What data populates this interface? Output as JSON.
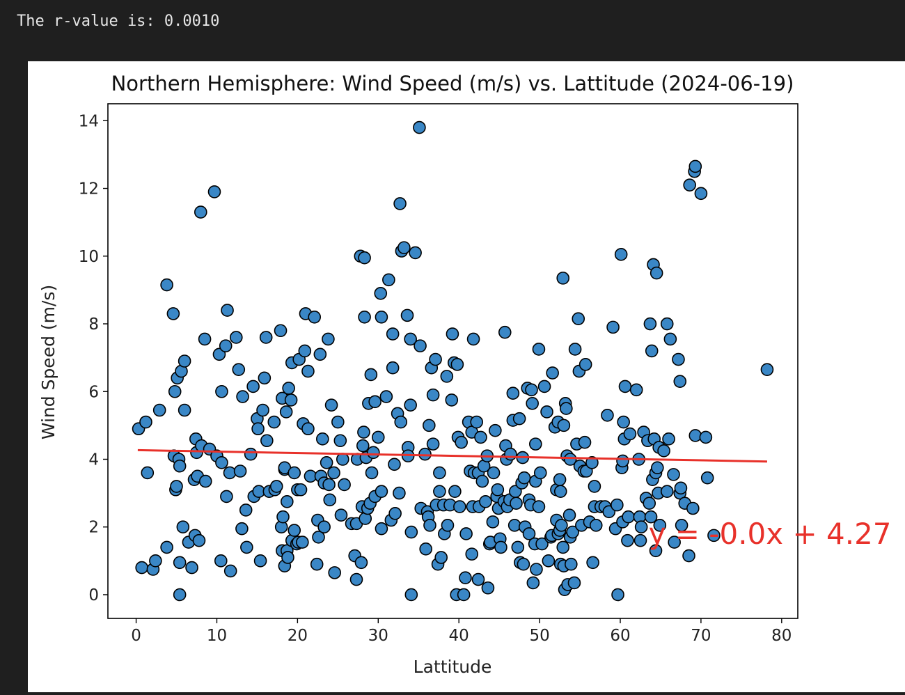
{
  "output": {
    "text": "The r-value is: 0.0010"
  },
  "chart_data": {
    "type": "scatter",
    "title": "Northern Hemisphere: Wind Speed (m/s) vs. Lattitude (2024-06-19)",
    "xlabel": "Lattitude",
    "ylabel": "Wind Speed (m/s)",
    "xlim": [
      -3.5,
      82
    ],
    "ylim": [
      -0.7,
      14.5
    ],
    "xticks": [
      0,
      10,
      20,
      30,
      40,
      50,
      60,
      70,
      80
    ],
    "yticks": [
      0,
      2,
      4,
      6,
      8,
      10,
      12,
      14
    ],
    "grid": false,
    "marker_color": "#3a87c6",
    "marker_edge": "#000000",
    "regression": {
      "equation": "y = -0.0x + 4.27",
      "slope": -0.0043,
      "intercept": 4.27,
      "x_range": [
        0.2,
        78.2
      ],
      "color": "#e8312a",
      "label_position": [
        63.5,
        1.5
      ]
    },
    "points": [
      [
        0.3,
        4.9
      ],
      [
        1.2,
        5.1
      ],
      [
        0.7,
        0.8
      ],
      [
        1.4,
        3.6
      ],
      [
        2.1,
        0.75
      ],
      [
        2.4,
        1.0
      ],
      [
        2.9,
        5.45
      ],
      [
        3.8,
        9.15
      ],
      [
        3.8,
        1.4
      ],
      [
        4.6,
        8.3
      ],
      [
        4.8,
        6.0
      ],
      [
        4.7,
        4.1
      ],
      [
        4.9,
        3.1
      ],
      [
        5.1,
        6.4
      ],
      [
        5.0,
        3.2
      ],
      [
        5.3,
        4.0
      ],
      [
        5.4,
        3.8
      ],
      [
        5.4,
        0.95
      ],
      [
        5.4,
        0.0
      ],
      [
        5.6,
        6.6
      ],
      [
        5.8,
        2.0
      ],
      [
        6.0,
        5.45
      ],
      [
        6.0,
        6.9
      ],
      [
        6.5,
        1.55
      ],
      [
        6.9,
        0.8
      ],
      [
        7.3,
        1.75
      ],
      [
        7.2,
        3.4
      ],
      [
        7.4,
        4.6
      ],
      [
        7.5,
        4.2
      ],
      [
        7.6,
        3.5
      ],
      [
        7.8,
        1.6
      ],
      [
        8.0,
        11.3
      ],
      [
        8.1,
        4.4
      ],
      [
        8.5,
        7.55
      ],
      [
        8.6,
        3.35
      ],
      [
        9.1,
        4.3
      ],
      [
        9.7,
        11.9
      ],
      [
        10.0,
        4.1
      ],
      [
        10.3,
        7.1
      ],
      [
        10.5,
        1.0
      ],
      [
        10.6,
        3.9
      ],
      [
        10.6,
        6.0
      ],
      [
        11.2,
        2.9
      ],
      [
        11.1,
        7.35
      ],
      [
        11.3,
        8.4
      ],
      [
        11.6,
        3.6
      ],
      [
        11.7,
        0.7
      ],
      [
        12.4,
        7.6
      ],
      [
        12.7,
        6.65
      ],
      [
        12.9,
        3.65
      ],
      [
        13.1,
        1.95
      ],
      [
        13.2,
        5.85
      ],
      [
        13.6,
        2.5
      ],
      [
        13.7,
        1.4
      ],
      [
        14.2,
        4.15
      ],
      [
        14.6,
        2.9
      ],
      [
        14.5,
        6.15
      ],
      [
        15.0,
        5.2
      ],
      [
        15.2,
        3.05
      ],
      [
        15.1,
        4.9
      ],
      [
        15.4,
        1.0
      ],
      [
        15.7,
        5.45
      ],
      [
        15.9,
        6.4
      ],
      [
        16.1,
        7.6
      ],
      [
        16.2,
        4.55
      ],
      [
        16.5,
        3.05
      ],
      [
        17.1,
        5.1
      ],
      [
        17.2,
        3.1
      ],
      [
        17.4,
        3.2
      ],
      [
        17.9,
        7.8
      ],
      [
        18.1,
        5.8
      ],
      [
        18.0,
        2.0
      ],
      [
        18.1,
        1.3
      ],
      [
        18.2,
        2.3
      ],
      [
        18.4,
        0.85
      ],
      [
        18.4,
        3.7
      ],
      [
        18.4,
        3.75
      ],
      [
        18.6,
        5.4
      ],
      [
        18.7,
        2.75
      ],
      [
        18.7,
        1.3
      ],
      [
        18.8,
        1.1
      ],
      [
        18.9,
        6.1
      ],
      [
        19.2,
        5.75
      ],
      [
        19.3,
        6.85
      ],
      [
        19.3,
        1.6
      ],
      [
        19.6,
        3.6
      ],
      [
        19.6,
        1.9
      ],
      [
        19.9,
        1.5
      ],
      [
        20.0,
        3.1
      ],
      [
        20.1,
        1.55
      ],
      [
        20.2,
        6.95
      ],
      [
        20.4,
        3.1
      ],
      [
        20.6,
        1.55
      ],
      [
        20.7,
        5.05
      ],
      [
        20.9,
        7.2
      ],
      [
        21.0,
        8.3
      ],
      [
        21.3,
        6.6
      ],
      [
        21.3,
        4.9
      ],
      [
        21.6,
        3.5
      ],
      [
        22.1,
        8.2
      ],
      [
        22.4,
        0.9
      ],
      [
        22.5,
        2.2
      ],
      [
        22.6,
        1.7
      ],
      [
        22.8,
        7.1
      ],
      [
        22.9,
        3.5
      ],
      [
        23.1,
        4.6
      ],
      [
        23.3,
        3.3
      ],
      [
        23.3,
        2.0
      ],
      [
        23.6,
        3.9
      ],
      [
        23.8,
        7.55
      ],
      [
        23.9,
        3.25
      ],
      [
        24.0,
        2.8
      ],
      [
        24.2,
        5.6
      ],
      [
        24.5,
        3.6
      ],
      [
        24.6,
        0.65
      ],
      [
        25.0,
        5.1
      ],
      [
        25.3,
        4.55
      ],
      [
        25.4,
        2.35
      ],
      [
        25.6,
        4.0
      ],
      [
        25.8,
        3.25
      ],
      [
        26.7,
        2.1
      ],
      [
        27.1,
        1.15
      ],
      [
        27.3,
        2.1
      ],
      [
        27.3,
        0.45
      ],
      [
        27.4,
        4.0
      ],
      [
        27.8,
        10.0
      ],
      [
        27.9,
        0.95
      ],
      [
        28.0,
        2.6
      ],
      [
        28.1,
        4.4
      ],
      [
        28.2,
        4.8
      ],
      [
        28.3,
        9.95
      ],
      [
        28.3,
        8.2
      ],
      [
        28.4,
        2.25
      ],
      [
        28.5,
        4.05
      ],
      [
        28.7,
        2.55
      ],
      [
        28.8,
        5.65
      ],
      [
        29.0,
        2.7
      ],
      [
        29.2,
        3.6
      ],
      [
        29.1,
        6.5
      ],
      [
        29.4,
        4.2
      ],
      [
        29.6,
        5.7
      ],
      [
        29.6,
        2.9
      ],
      [
        30.0,
        4.65
      ],
      [
        30.3,
        8.9
      ],
      [
        30.4,
        8.2
      ],
      [
        30.4,
        3.05
      ],
      [
        30.4,
        1.95
      ],
      [
        31.0,
        5.85
      ],
      [
        31.3,
        9.3
      ],
      [
        31.6,
        2.2
      ],
      [
        31.8,
        7.7
      ],
      [
        31.8,
        6.7
      ],
      [
        32.0,
        3.85
      ],
      [
        32.1,
        2.4
      ],
      [
        32.4,
        5.35
      ],
      [
        32.6,
        3.0
      ],
      [
        32.7,
        11.55
      ],
      [
        32.8,
        5.1
      ],
      [
        32.9,
        10.15
      ],
      [
        33.2,
        10.25
      ],
      [
        33.6,
        8.25
      ],
      [
        33.7,
        4.35
      ],
      [
        33.7,
        4.1
      ],
      [
        34.0,
        7.55
      ],
      [
        34.0,
        5.6
      ],
      [
        34.1,
        1.85
      ],
      [
        34.1,
        0.0
      ],
      [
        34.6,
        10.1
      ],
      [
        35.1,
        13.8
      ],
      [
        35.2,
        7.35
      ],
      [
        35.3,
        2.55
      ],
      [
        35.8,
        4.15
      ],
      [
        35.9,
        1.35
      ],
      [
        36.1,
        2.45
      ],
      [
        36.2,
        2.3
      ],
      [
        36.3,
        5.0
      ],
      [
        36.4,
        2.05
      ],
      [
        36.6,
        6.7
      ],
      [
        36.8,
        5.9
      ],
      [
        36.8,
        4.45
      ],
      [
        37.1,
        6.95
      ],
      [
        37.2,
        2.65
      ],
      [
        37.4,
        0.9
      ],
      [
        37.6,
        3.6
      ],
      [
        37.6,
        3.05
      ],
      [
        37.8,
        1.1
      ],
      [
        38.1,
        2.65
      ],
      [
        38.2,
        1.8
      ],
      [
        38.5,
        6.45
      ],
      [
        38.6,
        2.05
      ],
      [
        38.9,
        2.65
      ],
      [
        39.1,
        5.75
      ],
      [
        39.2,
        7.7
      ],
      [
        39.5,
        3.05
      ],
      [
        39.4,
        6.85
      ],
      [
        39.7,
        0.0
      ],
      [
        39.8,
        6.8
      ],
      [
        39.9,
        4.65
      ],
      [
        40.1,
        2.6
      ],
      [
        40.3,
        4.5
      ],
      [
        40.6,
        0.0
      ],
      [
        40.8,
        0.5
      ],
      [
        40.9,
        1.8
      ],
      [
        41.2,
        5.1
      ],
      [
        41.4,
        3.65
      ],
      [
        41.6,
        4.8
      ],
      [
        41.6,
        1.2
      ],
      [
        41.7,
        2.6
      ],
      [
        41.8,
        7.55
      ],
      [
        41.9,
        3.6
      ],
      [
        42.2,
        5.1
      ],
      [
        42.4,
        3.6
      ],
      [
        42.4,
        0.45
      ],
      [
        42.5,
        2.6
      ],
      [
        42.7,
        4.65
      ],
      [
        42.9,
        3.35
      ],
      [
        43.1,
        3.8
      ],
      [
        43.3,
        2.75
      ],
      [
        43.5,
        4.1
      ],
      [
        43.6,
        0.2
      ],
      [
        43.8,
        1.5
      ],
      [
        43.9,
        1.55
      ],
      [
        44.2,
        2.15
      ],
      [
        44.3,
        3.6
      ],
      [
        44.5,
        4.85
      ],
      [
        44.7,
        2.9
      ],
      [
        44.8,
        3.1
      ],
      [
        44.9,
        2.55
      ],
      [
        45.1,
        1.65
      ],
      [
        45.2,
        1.4
      ],
      [
        45.6,
        2.75
      ],
      [
        45.8,
        4.4
      ],
      [
        45.7,
        7.75
      ],
      [
        45.9,
        4.0
      ],
      [
        46.0,
        2.6
      ],
      [
        46.3,
        2.8
      ],
      [
        46.4,
        4.15
      ],
      [
        46.7,
        5.15
      ],
      [
        46.7,
        5.95
      ],
      [
        46.9,
        2.05
      ],
      [
        47.0,
        3.05
      ],
      [
        47.1,
        2.7
      ],
      [
        47.3,
        1.4
      ],
      [
        47.5,
        5.2
      ],
      [
        47.6,
        0.95
      ],
      [
        47.8,
        3.3
      ],
      [
        47.9,
        4.05
      ],
      [
        48.0,
        0.9
      ],
      [
        48.1,
        3.45
      ],
      [
        48.2,
        2.0
      ],
      [
        48.5,
        6.1
      ],
      [
        48.7,
        1.8
      ],
      [
        48.7,
        2.8
      ],
      [
        48.9,
        2.65
      ],
      [
        49.0,
        6.05
      ],
      [
        49.1,
        5.65
      ],
      [
        49.2,
        0.35
      ],
      [
        49.4,
        1.5
      ],
      [
        49.5,
        3.35
      ],
      [
        49.5,
        4.45
      ],
      [
        49.6,
        0.75
      ],
      [
        49.9,
        2.6
      ],
      [
        49.9,
        7.25
      ],
      [
        50.1,
        3.6
      ],
      [
        50.3,
        1.5
      ],
      [
        50.6,
        6.15
      ],
      [
        50.9,
        5.4
      ],
      [
        51.1,
        1.0
      ],
      [
        51.4,
        1.7
      ],
      [
        51.5,
        1.75
      ],
      [
        51.6,
        6.55
      ],
      [
        51.9,
        4.95
      ],
      [
        52.1,
        3.1
      ],
      [
        52.1,
        2.2
      ],
      [
        52.3,
        5.1
      ],
      [
        52.3,
        1.8
      ],
      [
        52.5,
        1.9
      ],
      [
        52.5,
        3.4
      ],
      [
        52.6,
        0.9
      ],
      [
        52.6,
        3.05
      ],
      [
        52.7,
        2.05
      ],
      [
        52.9,
        9.35
      ],
      [
        52.9,
        1.4
      ],
      [
        53.0,
        5.0
      ],
      [
        53.0,
        0.85
      ],
      [
        53.1,
        0.15
      ],
      [
        53.2,
        5.65
      ],
      [
        53.4,
        4.1
      ],
      [
        53.3,
        5.5
      ],
      [
        53.5,
        0.3
      ],
      [
        53.7,
        2.35
      ],
      [
        53.8,
        1.7
      ],
      [
        53.8,
        4.0
      ],
      [
        53.9,
        0.9
      ],
      [
        54.1,
        1.85
      ],
      [
        54.3,
        0.35
      ],
      [
        54.4,
        7.25
      ],
      [
        54.6,
        4.45
      ],
      [
        54.8,
        8.15
      ],
      [
        54.9,
        6.6
      ],
      [
        55.0,
        3.8
      ],
      [
        55.2,
        2.05
      ],
      [
        55.5,
        3.65
      ],
      [
        55.6,
        4.5
      ],
      [
        55.7,
        6.8
      ],
      [
        55.8,
        3.65
      ],
      [
        56.2,
        2.15
      ],
      [
        56.5,
        3.9
      ],
      [
        56.6,
        0.95
      ],
      [
        56.8,
        3.2
      ],
      [
        56.8,
        2.6
      ],
      [
        57.0,
        2.05
      ],
      [
        57.6,
        2.6
      ],
      [
        58.1,
        2.6
      ],
      [
        58.4,
        5.3
      ],
      [
        58.6,
        2.45
      ],
      [
        59.1,
        7.9
      ],
      [
        59.4,
        1.95
      ],
      [
        59.6,
        2.65
      ],
      [
        59.7,
        0.0
      ],
      [
        60.1,
        10.05
      ],
      [
        60.2,
        3.75
      ],
      [
        60.3,
        3.95
      ],
      [
        60.3,
        2.15
      ],
      [
        60.4,
        5.1
      ],
      [
        60.5,
        4.6
      ],
      [
        60.6,
        6.15
      ],
      [
        60.9,
        1.6
      ],
      [
        61.0,
        2.3
      ],
      [
        61.2,
        4.75
      ],
      [
        62.0,
        6.05
      ],
      [
        62.3,
        4.0
      ],
      [
        62.4,
        2.3
      ],
      [
        62.5,
        1.6
      ],
      [
        62.6,
        2.0
      ],
      [
        62.9,
        4.8
      ],
      [
        63.2,
        2.85
      ],
      [
        63.4,
        4.55
      ],
      [
        63.6,
        2.7
      ],
      [
        63.7,
        8.0
      ],
      [
        63.8,
        2.3
      ],
      [
        63.9,
        7.2
      ],
      [
        64.0,
        3.4
      ],
      [
        64.1,
        9.75
      ],
      [
        64.2,
        4.6
      ],
      [
        64.4,
        3.6
      ],
      [
        64.4,
        1.3
      ],
      [
        64.5,
        9.5
      ],
      [
        64.6,
        3.75
      ],
      [
        64.7,
        3.0
      ],
      [
        64.8,
        4.35
      ],
      [
        64.9,
        2.05
      ],
      [
        65.4,
        4.25
      ],
      [
        65.8,
        3.05
      ],
      [
        65.8,
        8.0
      ],
      [
        66.0,
        4.6
      ],
      [
        66.2,
        7.55
      ],
      [
        66.6,
        3.55
      ],
      [
        66.7,
        1.55
      ],
      [
        67.2,
        6.95
      ],
      [
        67.4,
        6.3
      ],
      [
        67.4,
        3.0
      ],
      [
        67.5,
        3.15
      ],
      [
        67.6,
        2.05
      ],
      [
        68.0,
        2.7
      ],
      [
        68.5,
        1.15
      ],
      [
        68.6,
        12.1
      ],
      [
        69.0,
        2.55
      ],
      [
        69.2,
        12.5
      ],
      [
        69.3,
        12.65
      ],
      [
        69.3,
        4.7
      ],
      [
        70.0,
        11.85
      ],
      [
        70.6,
        4.65
      ],
      [
        70.8,
        3.45
      ],
      [
        71.6,
        1.75
      ],
      [
        78.2,
        6.65
      ]
    ]
  }
}
